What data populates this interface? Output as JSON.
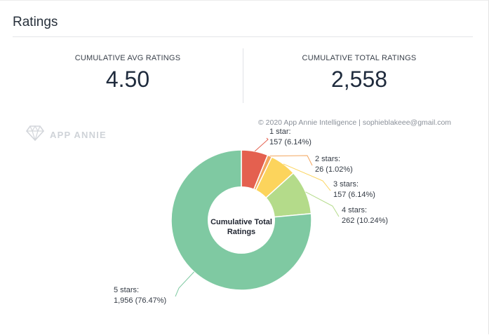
{
  "card": {
    "title": "Ratings"
  },
  "kpis": {
    "avg_label": "CUMULATIVE AVG RATINGS",
    "avg_value": "4.50",
    "total_label": "CUMULATIVE TOTAL RATINGS",
    "total_value": "2,558"
  },
  "watermark": {
    "text": "APP ANNIE",
    "icon": "diamond-logo-icon"
  },
  "copyright": "© 2020 App Annie Intelligence | sophieblakeee@gmail.com",
  "chart_data": {
    "type": "pie",
    "donut": true,
    "center_label": [
      "Cumulative Total",
      "Ratings"
    ],
    "categories": [
      "1 star",
      "2 stars",
      "3 stars",
      "4 stars",
      "5 stars"
    ],
    "values": [
      157,
      26,
      157,
      262,
      1956
    ],
    "percents": [
      6.14,
      1.02,
      6.14,
      10.24,
      76.47
    ],
    "labels": [
      [
        "1 star:",
        "157 (6.14%)"
      ],
      [
        "2 stars:",
        "26 (1.02%)"
      ],
      [
        "3 stars:",
        "157 (6.14%)"
      ],
      [
        "4 stars:",
        "262 (10.24%)"
      ],
      [
        "5 stars:",
        "1,956 (76.47%)"
      ]
    ],
    "colors": [
      "#e4604f",
      "#f3a65e",
      "#fcd45c",
      "#b4db8a",
      "#7fc9a2"
    ],
    "start_angle_deg": 0,
    "direction": "clockwise"
  }
}
